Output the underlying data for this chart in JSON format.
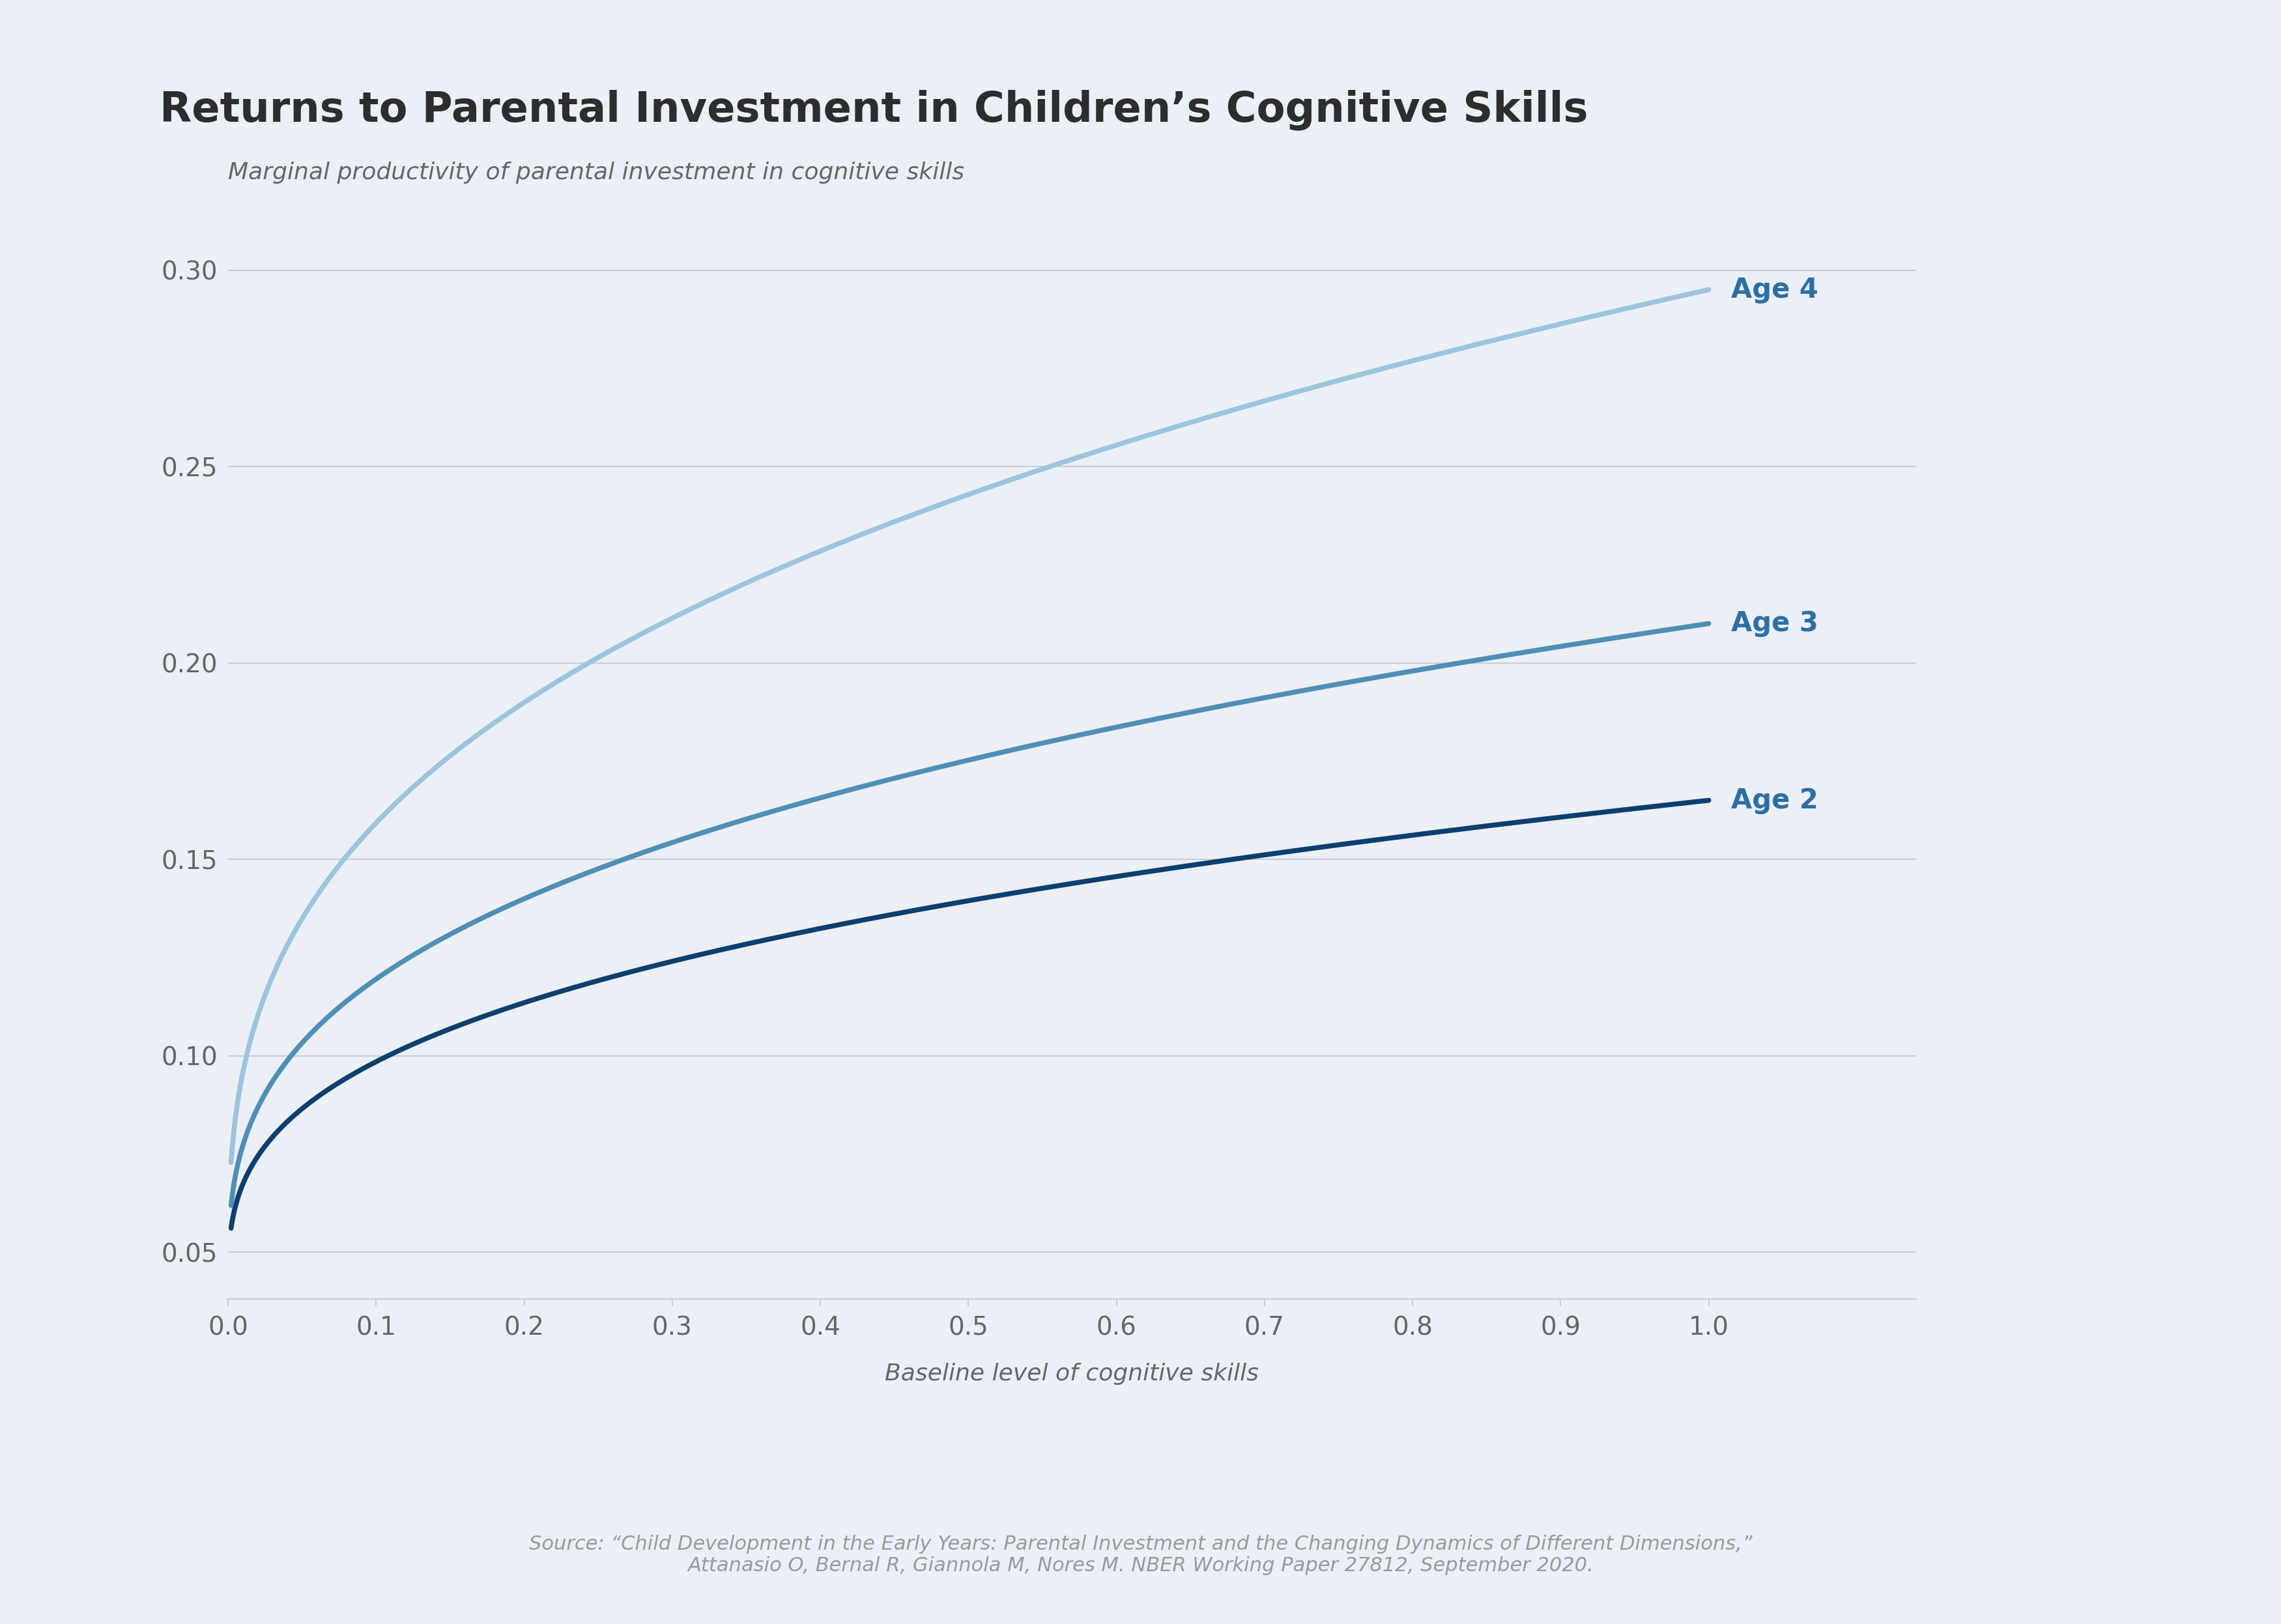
{
  "title": "Returns to Parental Investment in Children’s Cognitive Skills",
  "ylabel": "Marginal productivity of parental investment in cognitive skills",
  "xlabel": "Baseline level of cognitive skills",
  "source_line1": "Source: “Child Development in the Early Years: Parental Investment and the Changing Dynamics of Different Dimensions,”",
  "source_line2": "Attanasio O, Bernal R, Giannola M, Nores M. NBER Working Paper 27812, September 2020.",
  "background_color": "#EBF0F7",
  "xlim": [
    0.0,
    1.0
  ],
  "ylim": [
    0.038,
    0.315
  ],
  "yticks": [
    0.05,
    0.1,
    0.15,
    0.2,
    0.25,
    0.3
  ],
  "xticks": [
    0.0,
    0.1,
    0.2,
    0.3,
    0.4,
    0.5,
    0.6,
    0.7,
    0.8,
    0.9,
    1.0
  ],
  "curves": [
    {
      "label": "Age 2",
      "color": "#0D3F6E",
      "linewidth": 5.5,
      "params": {
        "a": 0.04,
        "b": 0.125,
        "c": 0.33
      }
    },
    {
      "label": "Age 3",
      "color": "#4F8FB5",
      "linewidth": 5.5,
      "params": {
        "a": 0.04,
        "b": 0.17,
        "c": 0.33
      }
    },
    {
      "label": "Age 4",
      "color": "#9DC4DC",
      "linewidth": 5.5,
      "params": {
        "a": 0.04,
        "b": 0.255,
        "c": 0.33
      }
    }
  ],
  "title_fontsize": 46,
  "ylabel_fontsize": 26,
  "xlabel_fontsize": 26,
  "tick_fontsize": 28,
  "label_fontsize": 30,
  "source_fontsize": 22,
  "grid_color": "#C8CDD6",
  "tick_color": "#666666",
  "title_color": "#2D2D2D",
  "label_color": "#2E6FA3",
  "source_color": "#999999"
}
